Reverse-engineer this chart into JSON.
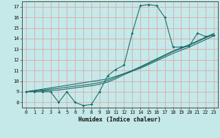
{
  "xlabel": "Humidex (Indice chaleur)",
  "background_color": "#c5e8e8",
  "grid_color": "#dba8a8",
  "line_color": "#1a6b6b",
  "x_data": [
    0,
    1,
    2,
    3,
    4,
    5,
    6,
    7,
    8,
    9,
    10,
    11,
    12,
    13,
    14,
    15,
    16,
    17,
    18,
    19,
    20,
    21,
    22,
    23
  ],
  "y_main": [
    9,
    9,
    9,
    9,
    8,
    9,
    8,
    7.7,
    7.8,
    9,
    10.5,
    11.1,
    11.5,
    14.5,
    17.1,
    17.2,
    17.1,
    16.0,
    13.2,
    13.2,
    13.3,
    14.5,
    14.2,
    14.3
  ],
  "y_line1": [
    9.0,
    9.12,
    9.24,
    9.36,
    9.48,
    9.6,
    9.72,
    9.84,
    9.96,
    10.08,
    10.2,
    10.45,
    10.7,
    10.95,
    11.2,
    11.55,
    11.9,
    12.25,
    12.6,
    12.9,
    13.2,
    13.55,
    13.9,
    14.25
  ],
  "y_line2": [
    9.0,
    9.08,
    9.16,
    9.24,
    9.32,
    9.42,
    9.52,
    9.62,
    9.72,
    9.86,
    10.05,
    10.35,
    10.7,
    11.0,
    11.35,
    11.72,
    12.09,
    12.46,
    12.83,
    13.13,
    13.43,
    13.78,
    14.13,
    14.48
  ],
  "y_line3": [
    9.0,
    9.04,
    9.08,
    9.12,
    9.16,
    9.26,
    9.36,
    9.46,
    9.56,
    9.7,
    9.9,
    10.22,
    10.6,
    10.92,
    11.28,
    11.65,
    12.02,
    12.39,
    12.76,
    13.06,
    13.36,
    13.71,
    14.06,
    14.41
  ],
  "xlim": [
    -0.5,
    23.5
  ],
  "ylim": [
    7.5,
    17.5
  ],
  "xticks": [
    0,
    1,
    2,
    3,
    4,
    5,
    6,
    7,
    8,
    9,
    10,
    11,
    12,
    13,
    14,
    15,
    16,
    17,
    18,
    19,
    20,
    21,
    22,
    23
  ],
  "yticks": [
    8,
    9,
    10,
    11,
    12,
    13,
    14,
    15,
    16,
    17
  ],
  "xlabel_fontsize": 6.0,
  "tick_fontsize": 5.0
}
